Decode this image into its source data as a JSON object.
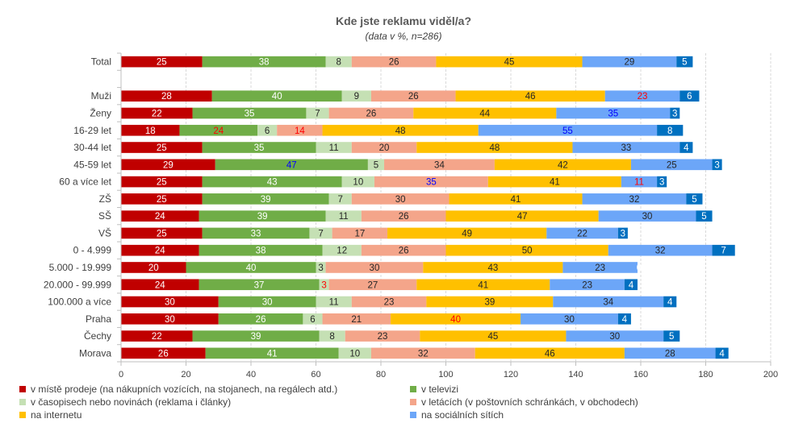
{
  "chart_data": {
    "type": "bar",
    "orientation": "horizontal",
    "stacked": true,
    "title": "Kde jste reklamu viděl/a?",
    "subtitle": "(data v %, n=286)",
    "xlim": [
      0,
      200
    ],
    "xticks": [
      "0",
      "20",
      "40",
      "60",
      "80",
      "100",
      "120",
      "140",
      "160",
      "180",
      "200"
    ],
    "grid": true,
    "legend_position": "bottom",
    "categories": [
      "Total",
      "",
      "Muži",
      "Ženy",
      "16-29 let",
      "30-44 let",
      "45-59 let",
      "60 a více let",
      "ZŠ",
      "SŠ",
      "VŠ",
      "0 - 4.999",
      "5.000 - 19.999",
      "20.000 - 99.999",
      "100.000 a více",
      "Praha",
      "Čechy",
      "Morava"
    ],
    "series": [
      {
        "name": "v místě prodeje (na nákupních vozících, na stojanech, na regálech atd.)",
        "color": "#c00000",
        "values": [
          25,
          null,
          28,
          22,
          18,
          25,
          29,
          25,
          25,
          24,
          25,
          24,
          20,
          24,
          30,
          30,
          22,
          26
        ],
        "label_colors": [
          "#ffffff",
          null,
          "#ffffff",
          "#ffffff",
          "#ffffff",
          "#ffffff",
          "#ffffff",
          "#ffffff",
          "#ffffff",
          "#ffffff",
          "#ffffff",
          "#ffffff",
          "#ffffff",
          "#ffffff",
          "#ffffff",
          "#ffffff",
          "#ffffff",
          "#ffffff"
        ]
      },
      {
        "name": "v televizi",
        "color": "#70ad47",
        "values": [
          38,
          null,
          40,
          35,
          24,
          35,
          47,
          43,
          39,
          39,
          33,
          38,
          40,
          37,
          30,
          26,
          39,
          41
        ],
        "label_colors": [
          "#ffffff",
          null,
          "#ffffff",
          "#ffffff",
          "#ff0000",
          "#ffffff",
          "#0000ff",
          "#ffffff",
          "#ffffff",
          "#ffffff",
          "#ffffff",
          "#ffffff",
          "#ffffff",
          "#ffffff",
          "#ffffff",
          "#ffffff",
          "#ffffff",
          "#ffffff"
        ]
      },
      {
        "name": "v časopisech nebo novinách (reklama i články)",
        "color": "#c5e0b4",
        "values": [
          8,
          null,
          9,
          7,
          6,
          11,
          5,
          10,
          7,
          11,
          7,
          12,
          3,
          3,
          11,
          6,
          8,
          10
        ],
        "label_colors": [
          "#262626",
          null,
          "#262626",
          "#262626",
          "#262626",
          "#262626",
          "#262626",
          "#262626",
          "#262626",
          "#262626",
          "#262626",
          "#262626",
          "#262626",
          "#ff0000",
          "#262626",
          "#262626",
          "#262626",
          "#262626"
        ]
      },
      {
        "name": "v letácích (v poštovních schránkách, v obchodech)",
        "color": "#f4a58a",
        "values": [
          26,
          null,
          26,
          26,
          14,
          20,
          34,
          35,
          30,
          26,
          17,
          26,
          30,
          27,
          23,
          21,
          23,
          32
        ],
        "label_colors": [
          "#262626",
          null,
          "#262626",
          "#262626",
          "#ff0000",
          "#262626",
          "#262626",
          "#0000ff",
          "#262626",
          "#262626",
          "#262626",
          "#262626",
          "#262626",
          "#262626",
          "#262626",
          "#262626",
          "#262626",
          "#262626"
        ]
      },
      {
        "name": "na internetu",
        "color": "#ffc000",
        "values": [
          45,
          null,
          46,
          44,
          48,
          48,
          42,
          41,
          41,
          47,
          49,
          50,
          43,
          41,
          39,
          40,
          45,
          46
        ],
        "label_colors": [
          "#262626",
          null,
          "#262626",
          "#262626",
          "#262626",
          "#262626",
          "#262626",
          "#262626",
          "#262626",
          "#262626",
          "#262626",
          "#262626",
          "#262626",
          "#262626",
          "#262626",
          "#ff0000",
          "#262626",
          "#262626"
        ]
      },
      {
        "name": "na sociálních sítích",
        "color": "#6ca6f8",
        "values": [
          29,
          null,
          23,
          35,
          55,
          33,
          25,
          11,
          32,
          30,
          22,
          32,
          23,
          23,
          34,
          30,
          30,
          28
        ],
        "label_colors": [
          "#262626",
          null,
          "#ff0000",
          "#0000ff",
          "#0000ff",
          "#262626",
          "#262626",
          "#ff0000",
          "#262626",
          "#262626",
          "#262626",
          "#262626",
          "#262626",
          "#262626",
          "#262626",
          "#262626",
          "#262626",
          "#262626"
        ]
      },
      {
        "name": "",
        "color": "#0070c0",
        "values": [
          5,
          null,
          6,
          3,
          8,
          4,
          3,
          3,
          5,
          5,
          3,
          7,
          0,
          4,
          4,
          4,
          5,
          4
        ],
        "label_colors": [
          "#ffffff",
          null,
          "#ffffff",
          "#ffffff",
          "#ffffff",
          "#ffffff",
          "#ffffff",
          "#ffffff",
          "#ffffff",
          "#ffffff",
          "#ffffff",
          "#ffffff",
          "#ffffff",
          "#ffffff",
          "#ffffff",
          "#ffffff",
          "#ffffff",
          "#ffffff"
        ]
      }
    ]
  }
}
